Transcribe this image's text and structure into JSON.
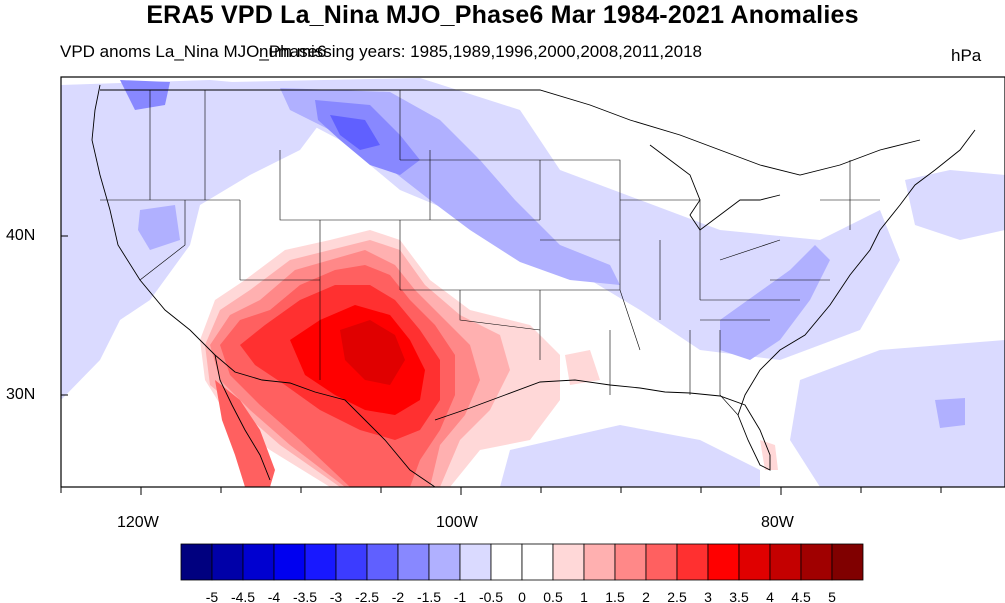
{
  "title": "ERA5 VPD La_Nina MJO_Phase6 Mar 1984-2021 Anomalies",
  "subtitle": {
    "left": "VPD anoms La_Nina MJO_Phase6",
    "overlap": "num missing years:",
    "years": "1985,1989,1996,2000,2008,2011,2018",
    "units": "hPa"
  },
  "map": {
    "region": "CONUS",
    "lon_range": [
      -125,
      -67.5
    ],
    "lat_range": [
      24,
      50
    ],
    "lat_ticks": [
      {
        "value": 40,
        "label": "40N"
      },
      {
        "value": 30,
        "label": "30N"
      }
    ],
    "lon_ticks": [
      {
        "value": -120,
        "label": "120W"
      },
      {
        "value": -100,
        "label": "100W"
      },
      {
        "value": -80,
        "label": "80W"
      }
    ],
    "anomaly_regions": [
      {
        "name": "southwest-positive",
        "max": 3.5
      },
      {
        "name": "northern-plains-negative",
        "min": -2.5
      },
      {
        "name": "southeast-negative",
        "min": -1.5
      }
    ]
  },
  "colorbar": {
    "labels": [
      "-5",
      "-4.5",
      "-4",
      "-3.5",
      "-3",
      "-2.5",
      "-2",
      "-1.5",
      "-1",
      "-0.5",
      "0",
      "0.5",
      "1",
      "1.5",
      "2",
      "2.5",
      "3",
      "3.5",
      "4",
      "4.5",
      "5"
    ],
    "colors": [
      "#00007f",
      "#0000a8",
      "#0000d0",
      "#0000f0",
      "#1818ff",
      "#3c3cff",
      "#6060ff",
      "#8888ff",
      "#b0b0ff",
      "#dadaff",
      "#ffffff",
      "#ffffff",
      "#ffd8d8",
      "#ffb0b0",
      "#ff8888",
      "#ff6060",
      "#ff3030",
      "#ff0000",
      "#e00000",
      "#c40000",
      "#a00000",
      "#800000"
    ]
  }
}
